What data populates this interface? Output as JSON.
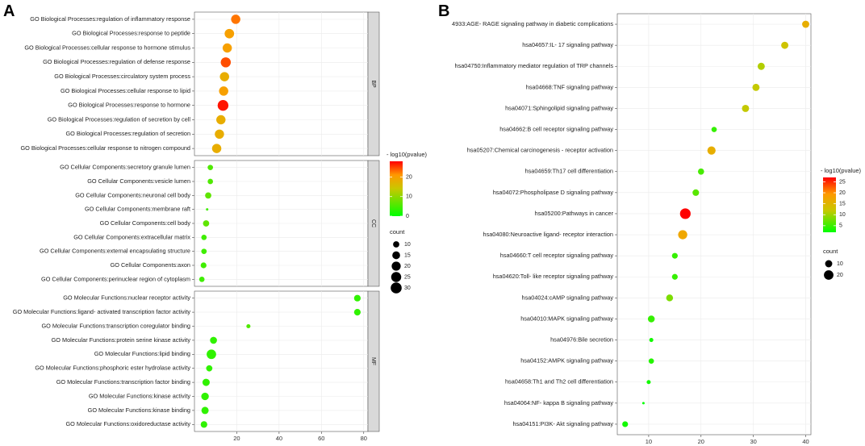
{
  "panel_a_label": "A",
  "panel_b_label": "B",
  "chart_data": [
    {
      "type": "scatter",
      "panel": "A",
      "title": "",
      "xlabel": "",
      "ylabel": "",
      "xlim": [
        0,
        82
      ],
      "xticks": [
        20,
        40,
        60,
        80
      ],
      "color_legend": {
        "title": "- log10(pvalue)",
        "ticks": [
          0,
          10,
          20
        ],
        "range": [
          0,
          28
        ],
        "colors": [
          "#00ff00",
          "#ff0000"
        ]
      },
      "size_legend": {
        "title": "count",
        "ticks": [
          10,
          15,
          20,
          25,
          30
        ],
        "range": [
          5,
          32
        ]
      },
      "facets": [
        {
          "name": "BP",
          "labels": [
            "GO Biological Processes:regulation of inflammatory response",
            "GO Biological Processes:response to peptide",
            "GO Biological Processes:cellular response to hormone stimulus",
            "GO Biological Processes:regulation of defense response",
            "GO Biological Processes:circulatory system process",
            "GO Biological Processes:cellular response to lipid",
            "GO Biological Processes:response to hormone",
            "GO Biological Processes:regulation of secretion by cell",
            "GO Biological Processes:regulation of secretion",
            "GO Biological Processes:cellular response to nitrogen compound"
          ],
          "x": [
            19.5,
            16.5,
            15.5,
            14.8,
            14.2,
            13.8,
            13.5,
            12.5,
            11.8,
            10.5
          ],
          "count": [
            21,
            22,
            21,
            25,
            21,
            21,
            29,
            21,
            21,
            21
          ],
          "pvalue": [
            22,
            19,
            19,
            24,
            17,
            19,
            27,
            17,
            17,
            17
          ]
        },
        {
          "name": "CC",
          "labels": [
            "GO Cellular Components:secretory granule lumen",
            "GO Cellular Components:vesicle lumen",
            "GO Cellular Components:neuronal cell body",
            "GO Cellular Components:membrane raft",
            "GO Cellular Components:cell body",
            "GO Cellular Components:extracellular matrix",
            "GO Cellular Components:external encapsulating structure",
            "GO Cellular Components:axon",
            "GO Cellular Components:perinuclear region of cytoplasm"
          ],
          "x": [
            7.5,
            7.5,
            6.5,
            6.0,
            5.5,
            4.5,
            4.5,
            4.3,
            3.5
          ],
          "count": [
            8,
            8,
            10,
            5,
            10,
            8,
            8,
            9,
            8
          ],
          "pvalue": [
            5,
            5,
            6,
            4,
            6,
            4,
            4,
            4,
            4
          ]
        },
        {
          "name": "MF",
          "labels": [
            "GO Molecular Functions:nuclear receptor activity",
            "GO Molecular Functions:ligand- activated transcription factor activity",
            "GO Molecular Functions:transcription coregulator binding",
            "GO Molecular Functions:protein serine kinase activity",
            "GO Molecular Functions:lipid binding",
            "GO Molecular Functions:phosphoric ester hydrolase activity",
            "GO Molecular Functions:transcription factor binding",
            "GO Molecular Functions:kinase activity",
            "GO Molecular Functions:kinase binding",
            "GO Molecular Functions:oxidoreductase activity"
          ],
          "x": [
            77,
            77,
            25.5,
            9,
            8,
            7,
            5.5,
            5,
            5,
            4.5
          ],
          "count": [
            11,
            11,
            6,
            12,
            22,
            10,
            13,
            14,
            13,
            11
          ],
          "pvalue": [
            3,
            3,
            5,
            3,
            3,
            3,
            3,
            3,
            3,
            3
          ]
        }
      ]
    },
    {
      "type": "scatter",
      "panel": "B",
      "title": "",
      "xlabel": "",
      "ylabel": "",
      "xlim": [
        4,
        41
      ],
      "xticks": [
        10,
        20,
        30,
        40
      ],
      "color_legend": {
        "title": "- log10(pvalue)",
        "ticks": [
          5,
          10,
          15,
          20,
          25
        ],
        "range": [
          2,
          27
        ],
        "colors": [
          "#00ff00",
          "#ff0000"
        ]
      },
      "size_legend": {
        "title": "count",
        "ticks": [
          10,
          20
        ],
        "range": [
          2,
          30
        ]
      },
      "labels": [
        "4933:AGE- RAGE signaling pathway in diabetic complications",
        "hsa04657:IL- 17 signaling pathway",
        "hsa04750:Inflammatory mediator regulation of TRP channels",
        "hsa04668:TNF signaling pathway",
        "hsa04071:Sphingolipid signaling pathway",
        "hsa04662:B cell receptor signaling pathway",
        "hsa05207:Chemical carcinogenesis -  receptor activation",
        "hsa04659:Th17 cell differentiation",
        "hsa04072:Phospholipase D signaling pathway",
        "hsa05200:Pathways in cancer",
        "hsa04080:Neuroactive ligand- receptor interaction",
        "hsa04660:T cell receptor signaling pathway",
        "hsa04620:Toll- like receptor signaling pathway",
        "hsa04024:cAMP signaling pathway",
        "hsa04010:MAPK signaling pathway",
        "hsa04976:Bile secretion",
        "hsa04152:AMPK signaling pathway",
        "hsa04658:Th1 and Th2 cell differentiation",
        "hsa04064:NF- kappa B signaling pathway",
        "hsa04151:PI3K- Akt signaling pathway"
      ],
      "x": [
        40,
        36,
        31.5,
        30.5,
        28.5,
        22.5,
        22,
        20,
        19,
        17,
        16.5,
        15,
        15,
        14,
        10.5,
        10.5,
        10.5,
        10,
        9,
        5.5
      ],
      "count": [
        10,
        10,
        10,
        10,
        10,
        5,
        14,
        7,
        8,
        26,
        18,
        6,
        6,
        9,
        9,
        3,
        5,
        3,
        2,
        6
      ],
      "pvalue": [
        17,
        14,
        12,
        13,
        13,
        5,
        17,
        6,
        7,
        27,
        18,
        5,
        5,
        9,
        5,
        3,
        4,
        3,
        2,
        3
      ]
    }
  ]
}
